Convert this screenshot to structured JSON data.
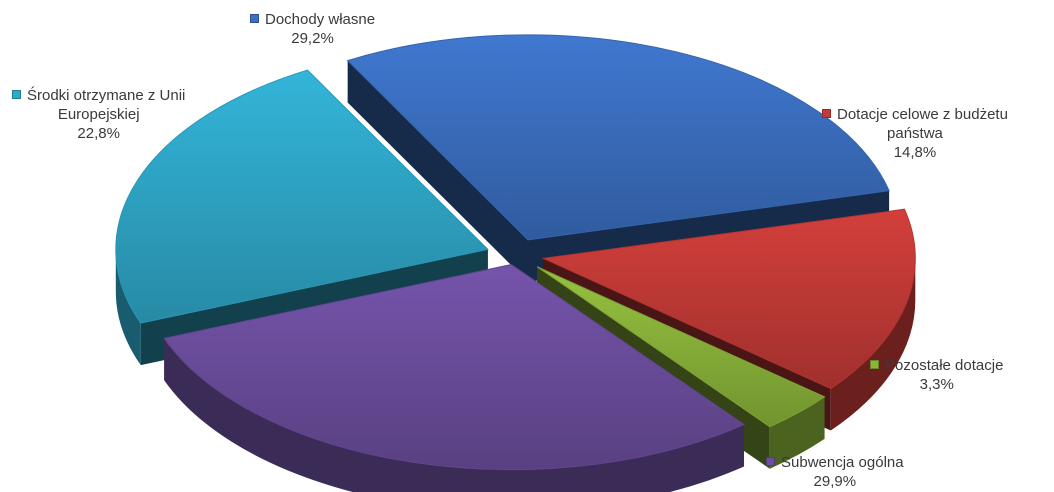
{
  "chart_data": {
    "type": "pie",
    "style": "3d-exploded",
    "legend": "data-labels-with-markers",
    "slices": [
      {
        "name": "Dochody własne",
        "label_lines": [
          "Dochody własne"
        ],
        "percent_text": "29,2%",
        "value": 29.2,
        "color": "#3b6fc1"
      },
      {
        "name": "Dotacje celowe z budżetu państwa",
        "label_lines": [
          "Dotacje celowe z budżetu",
          "państwa"
        ],
        "percent_text": "14,8%",
        "value": 14.8,
        "color": "#c33a37"
      },
      {
        "name": "Pozostałe dotacje",
        "label_lines": [
          "Pozostałe dotacje"
        ],
        "percent_text": "3,3%",
        "value": 3.3,
        "color": "#8bb43a"
      },
      {
        "name": "Subwencja ogólna",
        "label_lines": [
          "Subwencja ogólna"
        ],
        "percent_text": "29,9%",
        "value": 29.9,
        "color": "#6c4e9e"
      },
      {
        "name": "Środki otrzymane z Unii Europejskiej",
        "label_lines": [
          "Środki otrzymane z Unii",
          "Europejskiej"
        ],
        "percent_text": "22,8%",
        "value": 22.8,
        "color": "#2fa8c9"
      }
    ]
  }
}
